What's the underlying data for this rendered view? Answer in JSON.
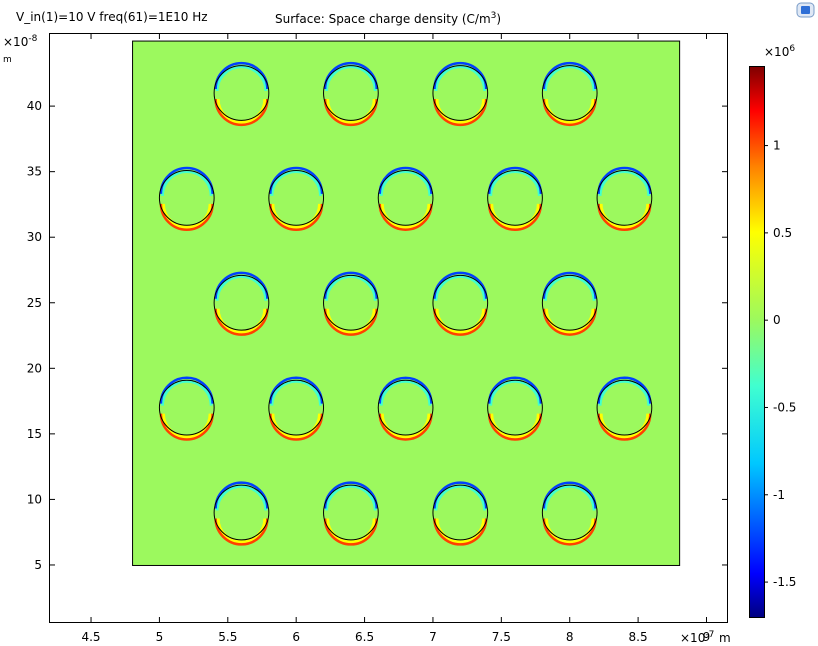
{
  "header": {
    "param_text": "V_in(1)=10 V freq(61)=1E10 Hz",
    "title_main": "Surface: Space charge density (C/m",
    "title_sup": "3",
    "title_end": ")"
  },
  "chart_data": {
    "type": "heatmap",
    "title": "Surface: Space charge density (C/m3)",
    "x_axis": {
      "range": [
        4.2,
        9.15
      ],
      "ticks": [
        4.5,
        5,
        5.5,
        6,
        6.5,
        7,
        7.5,
        8,
        8.5,
        9
      ],
      "multiplier_base": "×10",
      "multiplier_exp": "-7",
      "unit": "m"
    },
    "y_axis": {
      "range": [
        0.65,
        45.5
      ],
      "ticks": [
        5,
        10,
        15,
        20,
        25,
        30,
        35,
        40
      ],
      "multiplier_base": "×10",
      "multiplier_exp": "-8",
      "unit": "m"
    },
    "domain_rect": {
      "x": [
        4.8,
        8.8
      ],
      "y": [
        5,
        45
      ]
    },
    "background_value": 0,
    "hole_radius_x": 0.2,
    "holes": [
      {
        "x": 5.6,
        "y": 41
      },
      {
        "x": 6.4,
        "y": 41
      },
      {
        "x": 7.2,
        "y": 41
      },
      {
        "x": 8.0,
        "y": 41
      },
      {
        "x": 5.2,
        "y": 33
      },
      {
        "x": 6.0,
        "y": 33
      },
      {
        "x": 6.8,
        "y": 33
      },
      {
        "x": 7.6,
        "y": 33
      },
      {
        "x": 8.4,
        "y": 33
      },
      {
        "x": 5.6,
        "y": 25
      },
      {
        "x": 6.4,
        "y": 25
      },
      {
        "x": 7.2,
        "y": 25
      },
      {
        "x": 8.0,
        "y": 25
      },
      {
        "x": 5.2,
        "y": 17
      },
      {
        "x": 6.0,
        "y": 17
      },
      {
        "x": 6.8,
        "y": 17
      },
      {
        "x": 7.6,
        "y": 17
      },
      {
        "x": 8.4,
        "y": 17
      },
      {
        "x": 5.6,
        "y": 9
      },
      {
        "x": 6.4,
        "y": 9
      },
      {
        "x": 7.2,
        "y": 9
      },
      {
        "x": 8.0,
        "y": 9
      }
    ],
    "colorbar": {
      "multiplier_base": "×10",
      "multiplier_exp": "6",
      "range": [
        -1.7,
        1.45
      ],
      "ticks": [
        "1",
        "0.5",
        "0",
        "-0.5",
        "-1",
        "-1.5"
      ],
      "tick_values": [
        1,
        0.5,
        0,
        -0.5,
        -1,
        -1.5
      ],
      "colors": [
        "#00007f",
        "#0000ff",
        "#00c8ff",
        "#40ffd0",
        "#9cf95e",
        "#ffff00",
        "#ff8000",
        "#ff0000",
        "#7f0000"
      ]
    }
  }
}
